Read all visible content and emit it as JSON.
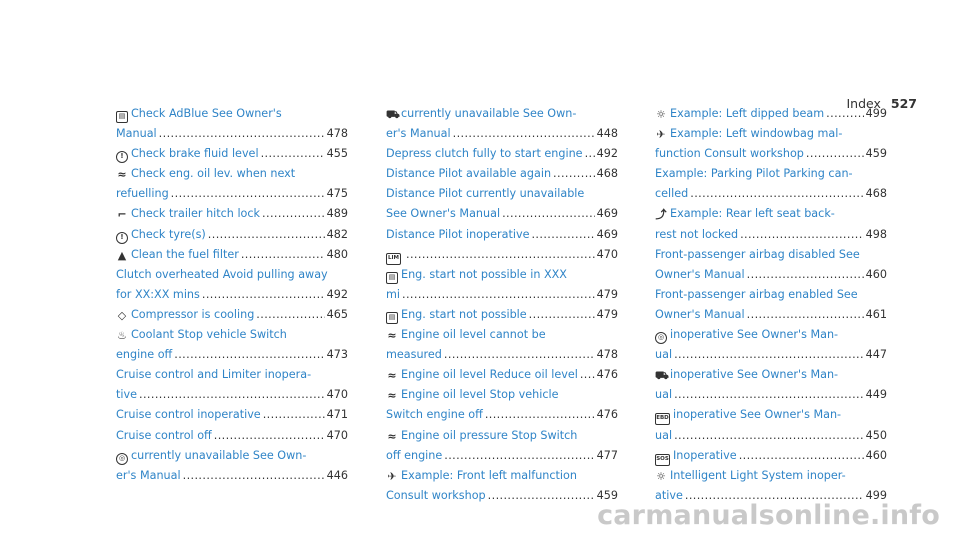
{
  "header": {
    "title": "Index",
    "page": "527"
  },
  "watermark": "carmanualsonline.info",
  "columns": [
    [
      {
        "icon": "document-icon",
        "glyph": "▤",
        "lines": [
          "Check AdBlue See Owner's",
          "Manual"
        ],
        "page": "478"
      },
      {
        "icon": "brake-icon",
        "glyph": "!",
        "lines": [
          "Check brake fluid level"
        ],
        "page": "455"
      },
      {
        "icon": "oil-can-icon",
        "glyph": "≈",
        "lines": [
          "Check eng. oil lev. when next",
          "refuelling"
        ],
        "page": "475"
      },
      {
        "icon": "trailer-hitch-icon",
        "glyph": "⌐",
        "lines": [
          "Check trailer hitch lock"
        ],
        "page": "489"
      },
      {
        "icon": "tyre-pressure-icon",
        "glyph": "!",
        "lines": [
          "Check tyre(s)"
        ],
        "page": "482"
      },
      {
        "icon": "fuel-filter-icon",
        "glyph": "▲",
        "lines": [
          "Clean the fuel filter"
        ],
        "page": "480"
      },
      {
        "icon": "",
        "glyph": "",
        "lines": [
          "Clutch overheated Avoid pulling away",
          "for XX:XX mins"
        ],
        "page": "492"
      },
      {
        "icon": "compressor-icon",
        "glyph": "◇",
        "lines": [
          "Compressor is cooling"
        ],
        "page": "465"
      },
      {
        "icon": "coolant-icon",
        "glyph": "♨",
        "lines": [
          "Coolant Stop vehicle Switch",
          "engine off"
        ],
        "page": "473"
      },
      {
        "icon": "",
        "glyph": "",
        "lines": [
          "Cruise control and Limiter inopera-",
          "tive"
        ],
        "page": "470"
      },
      {
        "icon": "",
        "glyph": "",
        "lines": [
          "Cruise control inoperative"
        ],
        "page": "471"
      },
      {
        "icon": "",
        "glyph": "",
        "lines": [
          "Cruise control off"
        ],
        "page": "470"
      },
      {
        "icon": "cruise-control-icon",
        "glyph": "◎",
        "lines": [
          "currently unavailable See Own-",
          "er's Manual"
        ],
        "page": "446"
      }
    ],
    [
      {
        "icon": "vehicle-icon",
        "glyph": "⛟",
        "lines": [
          "currently unavailable See Own-",
          "er's Manual"
        ],
        "page": "448"
      },
      {
        "icon": "",
        "glyph": "",
        "lines": [
          "Depress clutch fully to start engine"
        ],
        "page": "492"
      },
      {
        "icon": "",
        "glyph": "",
        "lines": [
          "Distance Pilot available again"
        ],
        "page": "468"
      },
      {
        "icon": "",
        "glyph": "",
        "lines": [
          "Distance Pilot currently unavailable",
          "See Owner's Manual"
        ],
        "page": "469"
      },
      {
        "icon": "",
        "glyph": "",
        "lines": [
          "Distance Pilot inoperative"
        ],
        "page": "469"
      },
      {
        "icon": "lim-icon",
        "glyph": "LIM",
        "lines": [
          ""
        ],
        "page": "470"
      },
      {
        "icon": "document-icon",
        "glyph": "▤",
        "lines": [
          "Eng. start not possible in XXX",
          "mi"
        ],
        "page": "479"
      },
      {
        "icon": "document-icon",
        "glyph": "▤",
        "lines": [
          "Eng. start not possible"
        ],
        "page": "479"
      },
      {
        "icon": "oil-level-icon",
        "glyph": "≈",
        "lines": [
          "Engine oil level cannot be",
          "measured"
        ],
        "page": "478"
      },
      {
        "icon": "oil-can-icon",
        "glyph": "≈",
        "lines": [
          "Engine oil level Reduce oil level"
        ],
        "page": "476"
      },
      {
        "icon": "oil-can-icon",
        "glyph": "≈",
        "lines": [
          "Engine oil level Stop vehicle",
          "Switch engine off"
        ],
        "page": "476"
      },
      {
        "icon": "oil-can-icon",
        "glyph": "≈",
        "lines": [
          "Engine oil pressure Stop Switch",
          "off engine"
        ],
        "page": "477"
      },
      {
        "icon": "airbag-icon",
        "glyph": "✈",
        "lines": [
          "Example: Front left malfunction",
          "Consult workshop"
        ],
        "page": "459"
      }
    ],
    [
      {
        "icon": "light-icon",
        "glyph": "☼",
        "lines": [
          "Example: Left dipped beam"
        ],
        "page": "499"
      },
      {
        "icon": "airbag-icon",
        "glyph": "✈",
        "lines": [
          "Example: Left windowbag mal-",
          "function Consult workshop"
        ],
        "page": "459"
      },
      {
        "icon": "",
        "glyph": "",
        "lines": [
          "Example: Parking Pilot Parking can-",
          "celled"
        ],
        "page": "468"
      },
      {
        "icon": "seat-backrest-icon",
        "glyph": "⤴",
        "lines": [
          "Example: Rear left seat back-",
          "rest not locked"
        ],
        "page": "498"
      },
      {
        "icon": "",
        "glyph": "",
        "lines": [
          "Front-passenger airbag disabled See",
          "Owner's Manual"
        ],
        "page": "460"
      },
      {
        "icon": "",
        "glyph": "",
        "lines": [
          "Front-passenger airbag enabled See",
          "Owner's Manual"
        ],
        "page": "461"
      },
      {
        "icon": "cruise-control-icon",
        "glyph": "◎",
        "lines": [
          "inoperative See Owner's Man-",
          "ual"
        ],
        "page": "447"
      },
      {
        "icon": "vehicle-icon",
        "glyph": "⛟",
        "lines": [
          "inoperative See Owner's Man-",
          "ual"
        ],
        "page": "449"
      },
      {
        "icon": "ebd-icon",
        "glyph": "EBD",
        "lines": [
          "inoperative See Owner's Man-",
          "ual"
        ],
        "page": "450"
      },
      {
        "icon": "sos-icon",
        "glyph": "SOS",
        "lines": [
          "Inoperative"
        ],
        "page": "460"
      },
      {
        "icon": "light-icon",
        "glyph": "☼",
        "lines": [
          "Intelligent Light System inoper-",
          "ative"
        ],
        "page": "499"
      }
    ]
  ]
}
